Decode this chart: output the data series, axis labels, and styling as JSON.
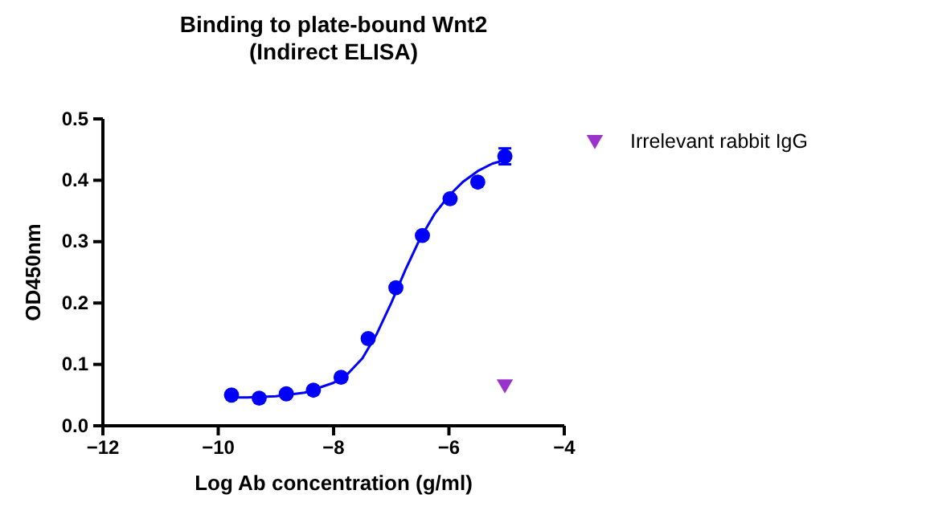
{
  "chart_data": {
    "type": "scatter",
    "title": "Binding to plate-bound Wnt2\n(Indirect ELISA)",
    "xlabel": "Log Ab concentration (g/ml)",
    "ylabel": "OD450nm",
    "xlim": [
      -12,
      -4
    ],
    "xticks": [
      -12,
      -10,
      -8,
      -6,
      -4
    ],
    "ylim": [
      0,
      0.5
    ],
    "yticks": [
      {
        "value": 0,
        "label": "0.0"
      },
      0.1,
      0.2,
      0.3,
      0.4,
      0.5
    ],
    "grid": false,
    "legend": "right",
    "series": [
      {
        "color": "#0000ff",
        "marker": "circle",
        "x": [
          -9.77,
          -9.29,
          -8.82,
          -8.35,
          -7.87,
          -7.4,
          -6.92,
          -6.46,
          -5.98,
          -5.5,
          -5.03
        ],
        "values": [
          0.05,
          0.045,
          0.052,
          0.058,
          0.079,
          0.142,
          0.225,
          0.31,
          0.37,
          0.397,
          0.439
        ],
        "errors": [
          null,
          null,
          null,
          null,
          null,
          null,
          null,
          null,
          null,
          null,
          0.013
        ]
      },
      {
        "type": "line",
        "color": "#0000ff",
        "marker": "none",
        "x": [
          -9.77,
          -9.5,
          -9.0,
          -8.5,
          -8.0,
          -7.75,
          -7.5,
          -7.25,
          -7.0,
          -6.75,
          -6.5,
          -6.25,
          -6.0,
          -5.75,
          -5.5,
          -5.25,
          -5.03
        ],
        "values": [
          0.046,
          0.046,
          0.048,
          0.054,
          0.07,
          0.085,
          0.11,
          0.15,
          0.2,
          0.255,
          0.305,
          0.345,
          0.375,
          0.398,
          0.415,
          0.427,
          0.433
        ]
      },
      {
        "name": "Irrelevant rabbit IgG",
        "color": "#9933cc",
        "marker": "triangle",
        "x": [
          -5.03
        ],
        "values": [
          0.068
        ]
      }
    ]
  }
}
